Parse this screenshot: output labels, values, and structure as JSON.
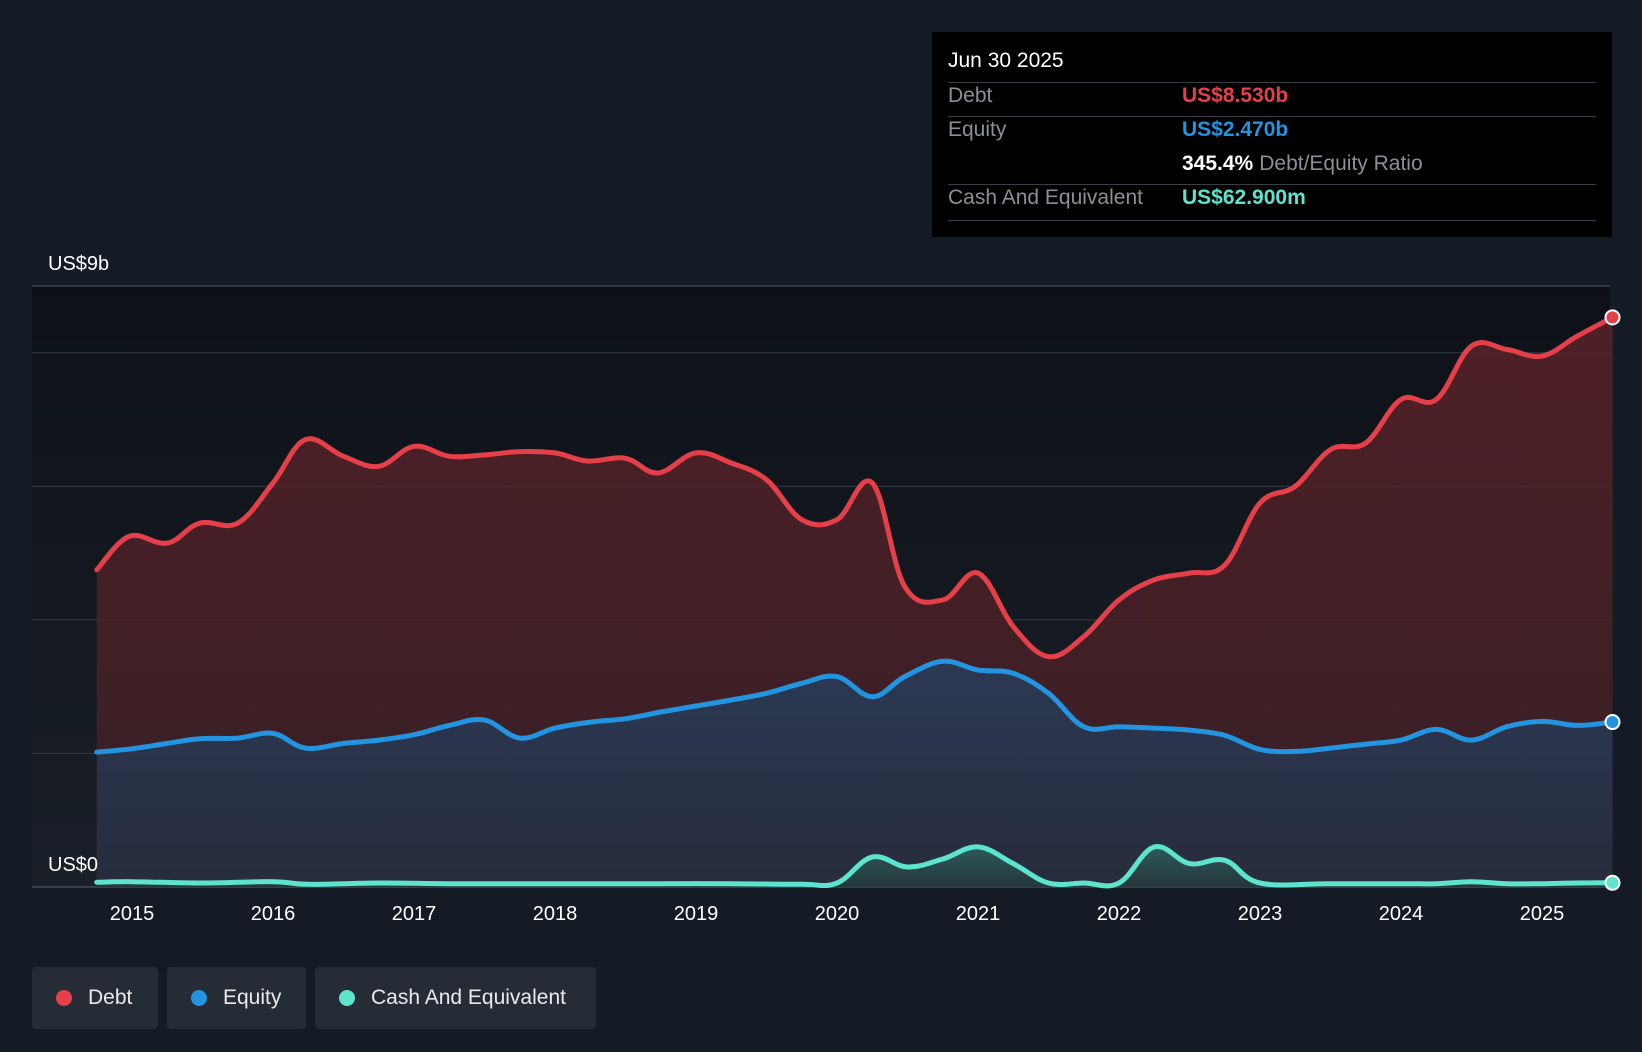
{
  "chart_data": {
    "type": "area",
    "title": "",
    "xlabel": "",
    "ylabel": "",
    "ylim": [
      0,
      9
    ],
    "y_unit": "US$ billions",
    "y_top_label": "US$9b",
    "y_bottom_label": "US$0",
    "grid": true,
    "x_ticks": [
      "2015",
      "2016",
      "2017",
      "2018",
      "2019",
      "2020",
      "2021",
      "2022",
      "2023",
      "2024",
      "2025"
    ],
    "x_tick_values": [
      2015,
      2016,
      2017,
      2018,
      2019,
      2020,
      2021,
      2022,
      2023,
      2024,
      2025
    ],
    "xlim": [
      2014.5,
      2025.5
    ],
    "series": [
      {
        "name": "Debt",
        "color": "#e5404a",
        "x": [
          2014.75,
          2014.98,
          2015.25,
          2015.48,
          2015.75,
          2016.0,
          2016.23,
          2016.5,
          2016.75,
          2017.0,
          2017.25,
          2017.5,
          2017.75,
          2018.0,
          2018.23,
          2018.5,
          2018.73,
          2019.0,
          2019.25,
          2019.5,
          2019.75,
          2020.0,
          2020.25,
          2020.48,
          2020.75,
          2021.0,
          2021.25,
          2021.5,
          2021.75,
          2022.0,
          2022.25,
          2022.5,
          2022.75,
          2023.0,
          2023.25,
          2023.5,
          2023.75,
          2024.0,
          2024.25,
          2024.5,
          2024.75,
          2025.0,
          2025.25,
          2025.5
        ],
        "values": [
          4.75,
          5.25,
          5.15,
          5.45,
          5.45,
          6.05,
          6.7,
          6.45,
          6.3,
          6.6,
          6.45,
          6.47,
          6.52,
          6.5,
          6.38,
          6.42,
          6.2,
          6.5,
          6.35,
          6.1,
          5.5,
          5.5,
          6.05,
          4.5,
          4.3,
          4.7,
          3.9,
          3.45,
          3.75,
          4.3,
          4.6,
          4.7,
          4.82,
          5.75,
          6.0,
          6.55,
          6.65,
          7.3,
          7.3,
          8.1,
          8.05,
          7.95,
          8.25,
          8.53
        ]
      },
      {
        "name": "Equity",
        "color": "#2394df",
        "x": [
          2014.75,
          2015.0,
          2015.25,
          2015.48,
          2015.75,
          2016.0,
          2016.23,
          2016.5,
          2016.75,
          2017.0,
          2017.25,
          2017.5,
          2017.75,
          2018.0,
          2018.25,
          2018.5,
          2018.75,
          2019.0,
          2019.25,
          2019.5,
          2019.75,
          2020.0,
          2020.25,
          2020.48,
          2020.75,
          2021.0,
          2021.25,
          2021.5,
          2021.75,
          2022.0,
          2022.25,
          2022.5,
          2022.75,
          2023.0,
          2023.25,
          2023.5,
          2023.75,
          2024.0,
          2024.25,
          2024.5,
          2024.75,
          2025.0,
          2025.25,
          2025.5
        ],
        "values": [
          2.02,
          2.07,
          2.15,
          2.22,
          2.23,
          2.3,
          2.08,
          2.15,
          2.2,
          2.28,
          2.42,
          2.5,
          2.23,
          2.38,
          2.47,
          2.52,
          2.62,
          2.71,
          2.8,
          2.9,
          3.05,
          3.15,
          2.85,
          3.15,
          3.38,
          3.25,
          3.2,
          2.9,
          2.4,
          2.4,
          2.38,
          2.35,
          2.27,
          2.06,
          2.03,
          2.08,
          2.14,
          2.2,
          2.36,
          2.2,
          2.4,
          2.48,
          2.42,
          2.47
        ]
      },
      {
        "name": "Cash And Equivalent",
        "color": "#5ee3cf",
        "x": [
          2014.75,
          2015.0,
          2015.5,
          2016.0,
          2016.25,
          2016.75,
          2017.25,
          2017.75,
          2018.25,
          2018.75,
          2019.25,
          2019.75,
          2020.0,
          2020.25,
          2020.5,
          2020.75,
          2021.0,
          2021.25,
          2021.5,
          2021.75,
          2022.0,
          2022.25,
          2022.5,
          2022.75,
          2023.0,
          2023.5,
          2024.0,
          2024.25,
          2024.5,
          2024.75,
          2025.0,
          2025.25,
          2025.5
        ],
        "values": [
          0.07,
          0.08,
          0.06,
          0.08,
          0.04,
          0.06,
          0.05,
          0.05,
          0.05,
          0.05,
          0.05,
          0.04,
          0.06,
          0.45,
          0.3,
          0.42,
          0.6,
          0.35,
          0.06,
          0.06,
          0.06,
          0.6,
          0.35,
          0.4,
          0.06,
          0.05,
          0.05,
          0.05,
          0.08,
          0.05,
          0.05,
          0.06,
          0.063
        ]
      }
    ]
  },
  "tooltip": {
    "date": "Jun 30 2025",
    "debt_label": "Debt",
    "debt_value": "US$8.530b",
    "equity_label": "Equity",
    "equity_value": "US$2.470b",
    "ratio_value": "345.4%",
    "ratio_label": "Debt/Equity Ratio",
    "cash_label": "Cash And Equivalent",
    "cash_value": "US$62.900m"
  },
  "legend": {
    "debt": "Debt",
    "equity": "Equity",
    "cash": "Cash And Equivalent"
  }
}
